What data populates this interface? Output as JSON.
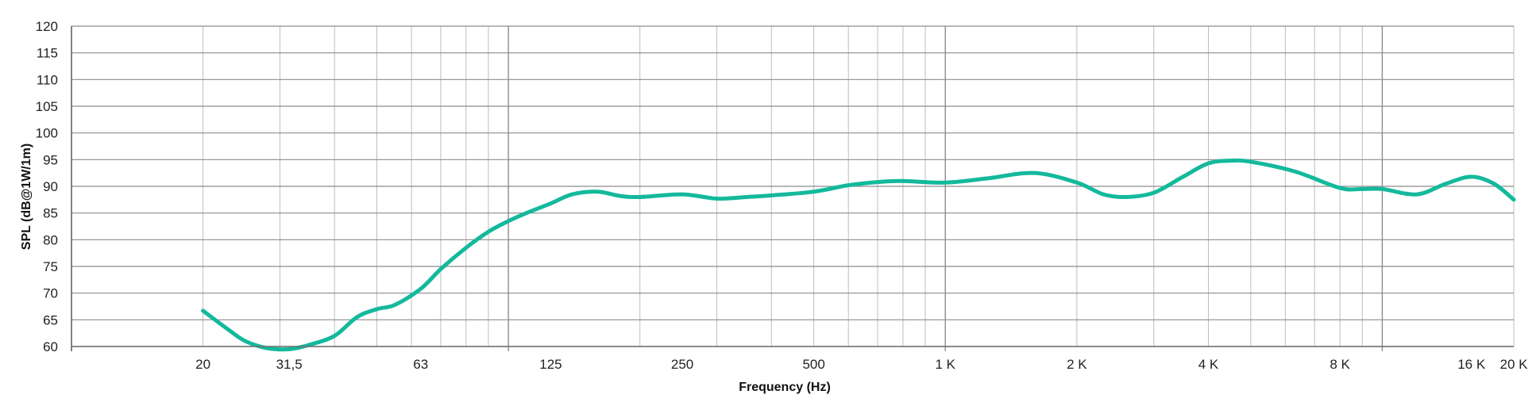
{
  "chart_data": {
    "type": "line",
    "title": "",
    "xlabel": "Frequency (Hz)",
    "ylabel": "SPL (dB@1W/1m)",
    "x_scale": "log",
    "xlim": [
      10,
      20000
    ],
    "ylim": [
      60,
      120
    ],
    "grid": true,
    "y_ticks": [
      60,
      65,
      70,
      75,
      80,
      85,
      90,
      95,
      100,
      105,
      110,
      115,
      120
    ],
    "x_tick_labels": [
      {
        "value": 20,
        "label": "20"
      },
      {
        "value": 31.5,
        "label": "31,5"
      },
      {
        "value": 63,
        "label": "63"
      },
      {
        "value": 125,
        "label": "125"
      },
      {
        "value": 250,
        "label": "250"
      },
      {
        "value": 500,
        "label": "500"
      },
      {
        "value": 1000,
        "label": "1 K"
      },
      {
        "value": 2000,
        "label": "2 K"
      },
      {
        "value": 4000,
        "label": "4 K"
      },
      {
        "value": 8000,
        "label": "8 K"
      },
      {
        "value": 16000,
        "label": "16 K"
      },
      {
        "value": 20000,
        "label": "20 K"
      }
    ],
    "series": [
      {
        "color": "#14b99c",
        "x": [
          20,
          23,
          25,
          28,
          31.5,
          35,
          40,
          45,
          50,
          55,
          63,
          70,
          80,
          90,
          100,
          110,
          125,
          140,
          160,
          180,
          200,
          250,
          300,
          350,
          400,
          500,
          600,
          700,
          800,
          1000,
          1250,
          1600,
          2000,
          2300,
          2600,
          3000,
          3500,
          4000,
          4500,
          5000,
          6300,
          8000,
          9000,
          10000,
          12000,
          14000,
          16000,
          18000,
          20000
        ],
        "y": [
          66.7,
          63.0,
          61.0,
          59.7,
          59.5,
          60.3,
          62.0,
          65.5,
          67.0,
          67.8,
          70.8,
          74.5,
          78.5,
          81.5,
          83.5,
          85.0,
          86.8,
          88.5,
          89.0,
          88.2,
          88.0,
          88.5,
          87.7,
          88.0,
          88.3,
          89.0,
          90.2,
          90.8,
          91.0,
          90.7,
          91.5,
          92.5,
          90.7,
          88.5,
          88.0,
          88.8,
          91.8,
          94.3,
          94.8,
          94.6,
          92.8,
          89.7,
          89.5,
          89.5,
          88.5,
          90.5,
          91.8,
          90.5,
          87.5
        ]
      }
    ]
  }
}
